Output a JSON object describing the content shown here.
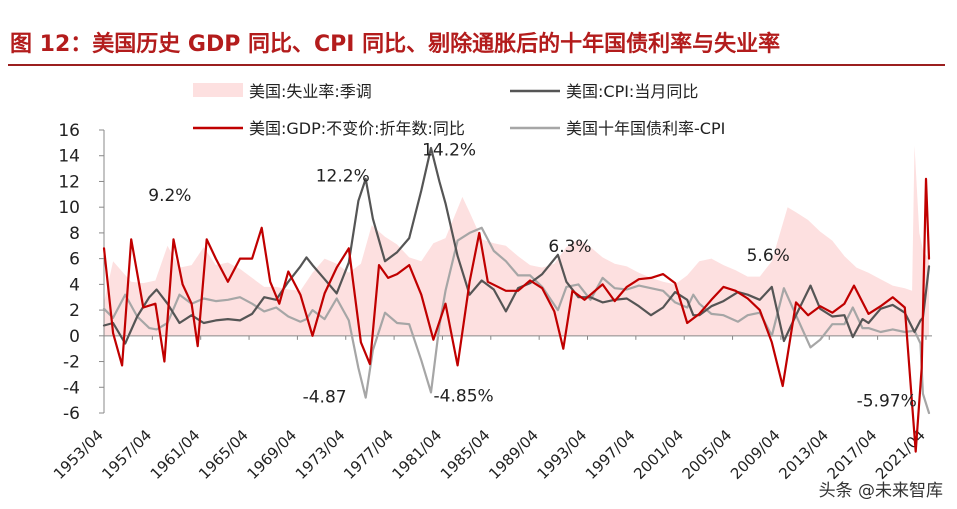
{
  "title": "图 12：美国历史 GDP 同比、CPI 同比、剔除通胀后的十年国债利率与失业率",
  "watermark": "头条 @未来智库",
  "colors": {
    "unemployment_fill": "#fde0e0",
    "cpi": "#555555",
    "gdp": "#c00000",
    "real_yield": "#a6a6a6",
    "title": "#b31c1c"
  },
  "chart_data": {
    "type": "line",
    "ylim": [
      -6,
      16
    ],
    "yticks": [
      -6,
      -4,
      -2,
      0,
      2,
      4,
      6,
      8,
      10,
      12,
      14,
      16
    ],
    "xlim": [
      1953.25,
      2021.75
    ],
    "xtick_labels": [
      "1953/04",
      "1957/04",
      "1961/04",
      "1965/04",
      "1969/04",
      "1973/04",
      "1977/04",
      "1981/04",
      "1985/04",
      "1989/04",
      "1993/04",
      "1997/04",
      "2001/04",
      "2005/04",
      "2009/04",
      "2013/04",
      "2017/04",
      "2021/04"
    ],
    "legend": [
      {
        "label": "美国:失业率:季调",
        "style": "area"
      },
      {
        "label": "美国:CPI:当月同比",
        "style": "line"
      },
      {
        "label": "美国:GDP:不变价:折年数:同比",
        "style": "line"
      },
      {
        "label": "美国十年国债利率-CPI",
        "style": "line"
      }
    ],
    "annotations": [
      {
        "text": "9.2%",
        "x": 1958.7,
        "y": 10.5
      },
      {
        "text": "12.2%",
        "x": 1973.0,
        "y": 12.0
      },
      {
        "text": "14.2%",
        "x": 1981.8,
        "y": 14.0
      },
      {
        "text": "6.3%",
        "x": 1991.8,
        "y": 6.5
      },
      {
        "text": "5.6%",
        "x": 2008.2,
        "y": 5.8
      },
      {
        "text": "-4.87",
        "x": 1971.5,
        "y": -5.2
      },
      {
        "text": "-4.85%",
        "x": 1983.0,
        "y": -5.1
      },
      {
        "text": "-5.97%",
        "x": 2018.0,
        "y": -5.5
      }
    ],
    "series": [
      {
        "name": "美国:失业率:季调",
        "type": "area",
        "x": [
          1953.25,
          1954.0,
          1954.75,
          1955.5,
          1956.5,
          1957.5,
          1958.5,
          1959.5,
          1960.5,
          1961.5,
          1962.5,
          1963.5,
          1964.5,
          1965.5,
          1966.5,
          1967.5,
          1968.5,
          1969.5,
          1970.5,
          1971.5,
          1972.5,
          1973.5,
          1974.5,
          1975.4,
          1976.5,
          1977.5,
          1978.5,
          1979.5,
          1980.5,
          1981.5,
          1982.9,
          1983.5,
          1984.5,
          1985.5,
          1986.5,
          1987.5,
          1988.5,
          1989.5,
          1990.5,
          1991.5,
          1992.5,
          1993.5,
          1994.5,
          1995.5,
          1996.5,
          1997.5,
          1998.5,
          1999.5,
          2000.5,
          2001.5,
          2002.5,
          2003.5,
          2004.5,
          2005.5,
          2006.5,
          2007.5,
          2008.5,
          2009.8,
          2010.5,
          2011.5,
          2012.5,
          2013.5,
          2014.5,
          2015.5,
          2016.5,
          2017.5,
          2018.5,
          2019.5,
          2020.1,
          2020.3,
          2020.7,
          2021.0,
          2021.5
        ],
        "values": [
          2.6,
          5.8,
          5.0,
          4.2,
          4.1,
          4.3,
          7.0,
          5.3,
          5.5,
          6.9,
          5.5,
          5.7,
          5.2,
          4.5,
          3.8,
          3.8,
          3.6,
          3.5,
          4.9,
          6.0,
          5.6,
          4.9,
          5.6,
          8.6,
          7.7,
          7.1,
          6.1,
          5.8,
          7.2,
          7.6,
          10.8,
          9.6,
          7.5,
          7.2,
          7.0,
          6.2,
          5.5,
          5.3,
          5.6,
          6.9,
          7.5,
          6.9,
          6.1,
          5.6,
          5.4,
          4.9,
          4.5,
          4.2,
          4.0,
          4.7,
          5.8,
          6.0,
          5.5,
          5.1,
          4.6,
          4.6,
          5.8,
          10.0,
          9.6,
          9.0,
          8.1,
          7.4,
          6.2,
          5.3,
          4.9,
          4.4,
          3.9,
          3.7,
          3.5,
          14.8,
          8.0,
          6.7,
          5.9
        ]
      },
      {
        "name": "美国:CPI:当月同比",
        "type": "line",
        "x": [
          1953.25,
          1954.0,
          1955.0,
          1956.0,
          1957.0,
          1957.6,
          1958.5,
          1959.5,
          1960.5,
          1961.5,
          1962.5,
          1963.5,
          1964.5,
          1965.5,
          1966.5,
          1967.5,
          1968.5,
          1969.5,
          1970.0,
          1970.5,
          1971.5,
          1972.5,
          1973.5,
          1974.3,
          1974.9,
          1975.5,
          1976.5,
          1977.5,
          1978.5,
          1979.5,
          1980.3,
          1981.0,
          1981.5,
          1982.5,
          1983.5,
          1984.5,
          1985.5,
          1986.5,
          1987.5,
          1988.5,
          1989.5,
          1990.8,
          1991.5,
          1992.5,
          1993.5,
          1994.5,
          1995.5,
          1996.5,
          1997.5,
          1998.5,
          1999.5,
          2000.5,
          2001.5,
          2002.0,
          2002.5,
          2003.5,
          2004.5,
          2005.7,
          2006.5,
          2007.5,
          2008.5,
          2009.5,
          2010.5,
          2011.7,
          2012.5,
          2013.5,
          2014.5,
          2015.2,
          2016.0,
          2016.5,
          2017.5,
          2018.5,
          2019.5,
          2020.3,
          2020.8,
          2021.0,
          2021.5
        ],
        "values": [
          0.8,
          1.0,
          -0.6,
          1.5,
          3.0,
          3.6,
          2.5,
          1.0,
          1.6,
          1.0,
          1.2,
          1.3,
          1.2,
          1.7,
          3.0,
          2.8,
          4.2,
          5.4,
          6.1,
          5.5,
          4.4,
          3.3,
          5.7,
          10.5,
          12.2,
          9.1,
          5.8,
          6.5,
          7.6,
          11.3,
          14.6,
          12.0,
          10.3,
          6.2,
          3.2,
          4.3,
          3.6,
          1.9,
          3.7,
          4.1,
          4.8,
          6.3,
          4.2,
          3.0,
          3.0,
          2.6,
          2.8,
          2.9,
          2.3,
          1.6,
          2.2,
          3.4,
          2.8,
          1.6,
          1.6,
          2.3,
          2.7,
          3.4,
          3.2,
          2.8,
          3.8,
          -0.4,
          1.6,
          3.9,
          2.1,
          1.5,
          1.6,
          -0.1,
          1.3,
          1.0,
          2.1,
          2.4,
          1.8,
          0.3,
          1.2,
          1.4,
          5.4
        ]
      },
      {
        "name": "美国:GDP:不变价:折年数:同比",
        "type": "line",
        "x": [
          1953.25,
          1954.0,
          1954.75,
          1955.5,
          1956.5,
          1957.5,
          1958.25,
          1959.0,
          1959.75,
          1960.5,
          1961.0,
          1961.75,
          1962.5,
          1963.5,
          1964.5,
          1965.5,
          1966.3,
          1967.0,
          1967.75,
          1968.5,
          1969.5,
          1970.5,
          1971.5,
          1972.5,
          1973.5,
          1974.5,
          1975.25,
          1976.0,
          1976.75,
          1977.5,
          1978.5,
          1979.5,
          1980.5,
          1981.5,
          1982.5,
          1983.5,
          1984.3,
          1985.0,
          1986.5,
          1987.5,
          1988.5,
          1989.5,
          1990.5,
          1991.25,
          1992.0,
          1993.0,
          1994.5,
          1995.5,
          1996.5,
          1997.5,
          1998.5,
          1999.5,
          2000.5,
          2001.5,
          2002.5,
          2003.5,
          2004.5,
          2005.5,
          2006.5,
          2007.5,
          2008.5,
          2009.4,
          2010.5,
          2011.5,
          2012.5,
          2013.5,
          2014.5,
          2015.3,
          2016.5,
          2017.5,
          2018.5,
          2019.5,
          2020.4,
          2020.9,
          2021.25,
          2021.5
        ],
        "values": [
          6.8,
          0.2,
          -2.3,
          7.5,
          2.2,
          2.5,
          -2.0,
          7.5,
          4.0,
          2.5,
          -0.8,
          7.5,
          6.0,
          4.2,
          6.0,
          6.0,
          8.4,
          4.2,
          2.5,
          5.0,
          3.2,
          0.0,
          3.3,
          5.3,
          6.8,
          -0.5,
          -2.2,
          5.5,
          4.5,
          4.8,
          5.5,
          3.2,
          -0.3,
          2.5,
          -2.3,
          4.2,
          8.0,
          4.2,
          3.5,
          3.5,
          4.3,
          3.7,
          1.9,
          -1.0,
          3.5,
          2.8,
          4.0,
          2.7,
          3.8,
          4.4,
          4.5,
          4.8,
          4.1,
          1.0,
          1.7,
          2.8,
          3.8,
          3.5,
          2.9,
          2.0,
          -0.5,
          -3.9,
          2.6,
          1.6,
          2.3,
          1.8,
          2.5,
          3.9,
          1.7,
          2.3,
          3.0,
          2.2,
          -9.0,
          -2.5,
          12.2,
          6.0
        ]
      },
      {
        "name": "美国十年国债利率-CPI",
        "type": "line",
        "x": [
          1953.25,
          1954.0,
          1955.0,
          1956.0,
          1957.0,
          1957.6,
          1958.5,
          1959.5,
          1960.5,
          1961.5,
          1962.5,
          1963.5,
          1964.5,
          1965.5,
          1966.5,
          1967.5,
          1968.5,
          1969.5,
          1970.0,
          1970.5,
          1971.5,
          1972.5,
          1973.5,
          1974.3,
          1974.9,
          1975.5,
          1976.5,
          1977.5,
          1978.5,
          1979.5,
          1980.3,
          1981.0,
          1981.5,
          1982.5,
          1983.5,
          1984.5,
          1985.5,
          1986.5,
          1987.5,
          1988.5,
          1989.5,
          1990.8,
          1991.5,
          1992.5,
          1993.5,
          1994.5,
          1995.5,
          1996.5,
          1997.5,
          1998.5,
          1999.5,
          2000.5,
          2001.5,
          2002.0,
          2002.5,
          2003.5,
          2004.5,
          2005.7,
          2006.5,
          2007.5,
          2008.5,
          2009.5,
          2010.5,
          2011.7,
          2012.5,
          2013.5,
          2014.5,
          2015.2,
          2016.0,
          2016.5,
          2017.5,
          2018.5,
          2019.5,
          2020.3,
          2020.8,
          2021.0,
          2021.5
        ],
        "values": [
          2.1,
          1.4,
          3.2,
          1.5,
          0.6,
          0.5,
          1.0,
          3.2,
          2.5,
          2.9,
          2.7,
          2.8,
          3.0,
          2.5,
          1.9,
          2.2,
          1.5,
          1.1,
          1.3,
          2.0,
          1.3,
          2.9,
          1.2,
          -2.5,
          -4.8,
          -1.1,
          1.8,
          1.0,
          0.9,
          -1.9,
          -4.4,
          0.8,
          3.5,
          7.4,
          8.0,
          8.4,
          6.6,
          5.8,
          4.7,
          4.7,
          3.8,
          2.0,
          3.8,
          4.0,
          2.8,
          4.5,
          3.7,
          3.6,
          3.9,
          3.7,
          3.5,
          2.6,
          2.2,
          3.2,
          2.5,
          1.7,
          1.6,
          1.1,
          1.6,
          1.8,
          0.0,
          3.7,
          1.6,
          -0.9,
          -0.3,
          0.9,
          0.9,
          2.2,
          0.6,
          0.6,
          0.3,
          0.5,
          0.3,
          0.4,
          -0.6,
          -4.5,
          -6.0
        ]
      }
    ]
  }
}
